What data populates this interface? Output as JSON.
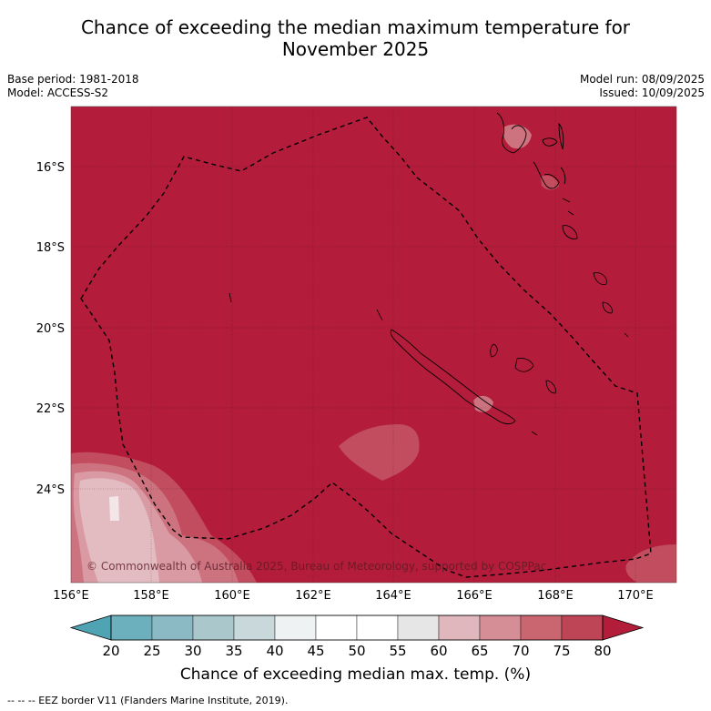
{
  "title_line1": "Chance of exceeding the median maximum temperature for",
  "title_line2": "November 2025",
  "base_period": "Base period: 1981-2018",
  "model": "Model: ACCESS-S2",
  "model_run": "Model run: 08/09/2025",
  "issued": "Issued: 10/09/2025",
  "copyright": "© Commonwealth of Australia 2025, Bureau of Meteorology, supported by COSPPac",
  "lat_labels": [
    "16°S",
    "18°S",
    "20°S",
    "22°S",
    "24°S"
  ],
  "lon_labels": [
    "156°E",
    "158°E",
    "160°E",
    "162°E",
    "164°E",
    "166°E",
    "168°E",
    "170°E"
  ],
  "colorbar": {
    "ticks": [
      "20",
      "25",
      "30",
      "35",
      "40",
      "45",
      "50",
      "55",
      "60",
      "65",
      "70",
      "75",
      "80"
    ],
    "colors": [
      "#4fa3b3",
      "#6cb0bd",
      "#8cbac4",
      "#aac8cc",
      "#c8d8db",
      "#eef2f3",
      "#ffffff",
      "#ffffff",
      "#e6e6e6",
      "#dfb7bc",
      "#d58e96",
      "#c96670",
      "#bd4556",
      "#b21d3a"
    ],
    "label": "Chance of exceeding median max. temp. (%)"
  },
  "map_colors": {
    "base": "#b31d3b",
    "level_75": "#c14d5e",
    "level_70": "#cd7380",
    "level_65": "#d99aa3",
    "level_60": "#e3bcc1",
    "level_55": "#f2e6e8"
  },
  "footnote": "-- -- -- EEZ border V11 (Flanders Marine Institute, 2019)."
}
